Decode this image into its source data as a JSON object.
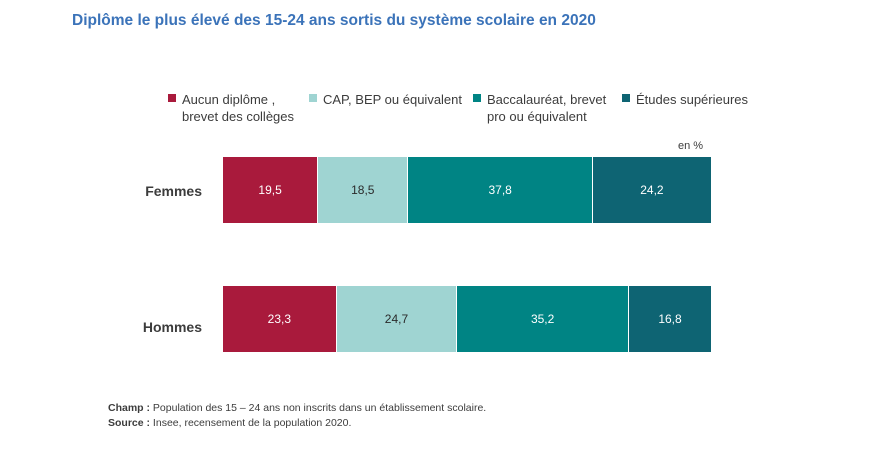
{
  "title": "Diplôme le plus élevé des 15-24 ans sortis du système scolaire en 2020",
  "unit_label": "en %",
  "legend": [
    {
      "label": "Aucun diplôme ,\nbrevet des collèges",
      "color": "#a91a3c"
    },
    {
      "label": "CAP, BEP ou équivalent",
      "color": "#9fd4d2"
    },
    {
      "label": "Baccalauréat, brevet\npro ou équivalent",
      "color": "#008484"
    },
    {
      "label": "Études supérieures",
      "color": "#0e6473"
    }
  ],
  "chart_data": {
    "type": "bar",
    "orientation": "horizontal",
    "stacked": true,
    "unit": "%",
    "categories": [
      "Femmes",
      "Hommes"
    ],
    "series": [
      {
        "name": "Aucun diplôme , brevet des collèges",
        "values": [
          19.5,
          23.3
        ],
        "labels": [
          "19,5",
          "23,3"
        ]
      },
      {
        "name": "CAP, BEP ou équivalent",
        "values": [
          18.5,
          24.7
        ],
        "labels": [
          "18,5",
          "24,7"
        ]
      },
      {
        "name": "Baccalauréat, brevet pro ou équivalent",
        "values": [
          37.8,
          35.2
        ],
        "labels": [
          "37,8",
          "35,2"
        ]
      },
      {
        "name": "Études supérieures",
        "values": [
          24.2,
          16.8
        ],
        "labels": [
          "24,2",
          "16,8"
        ]
      }
    ],
    "xlim": [
      0,
      100
    ],
    "legend_position": "top",
    "grid": false
  },
  "footer": {
    "champ_label": "Champ :",
    "champ_text": " Population des 15 – 24 ans non inscrits dans un établissement scolaire.",
    "source_label": "Source :",
    "source_text": " Insee, recensement de la population 2020."
  }
}
